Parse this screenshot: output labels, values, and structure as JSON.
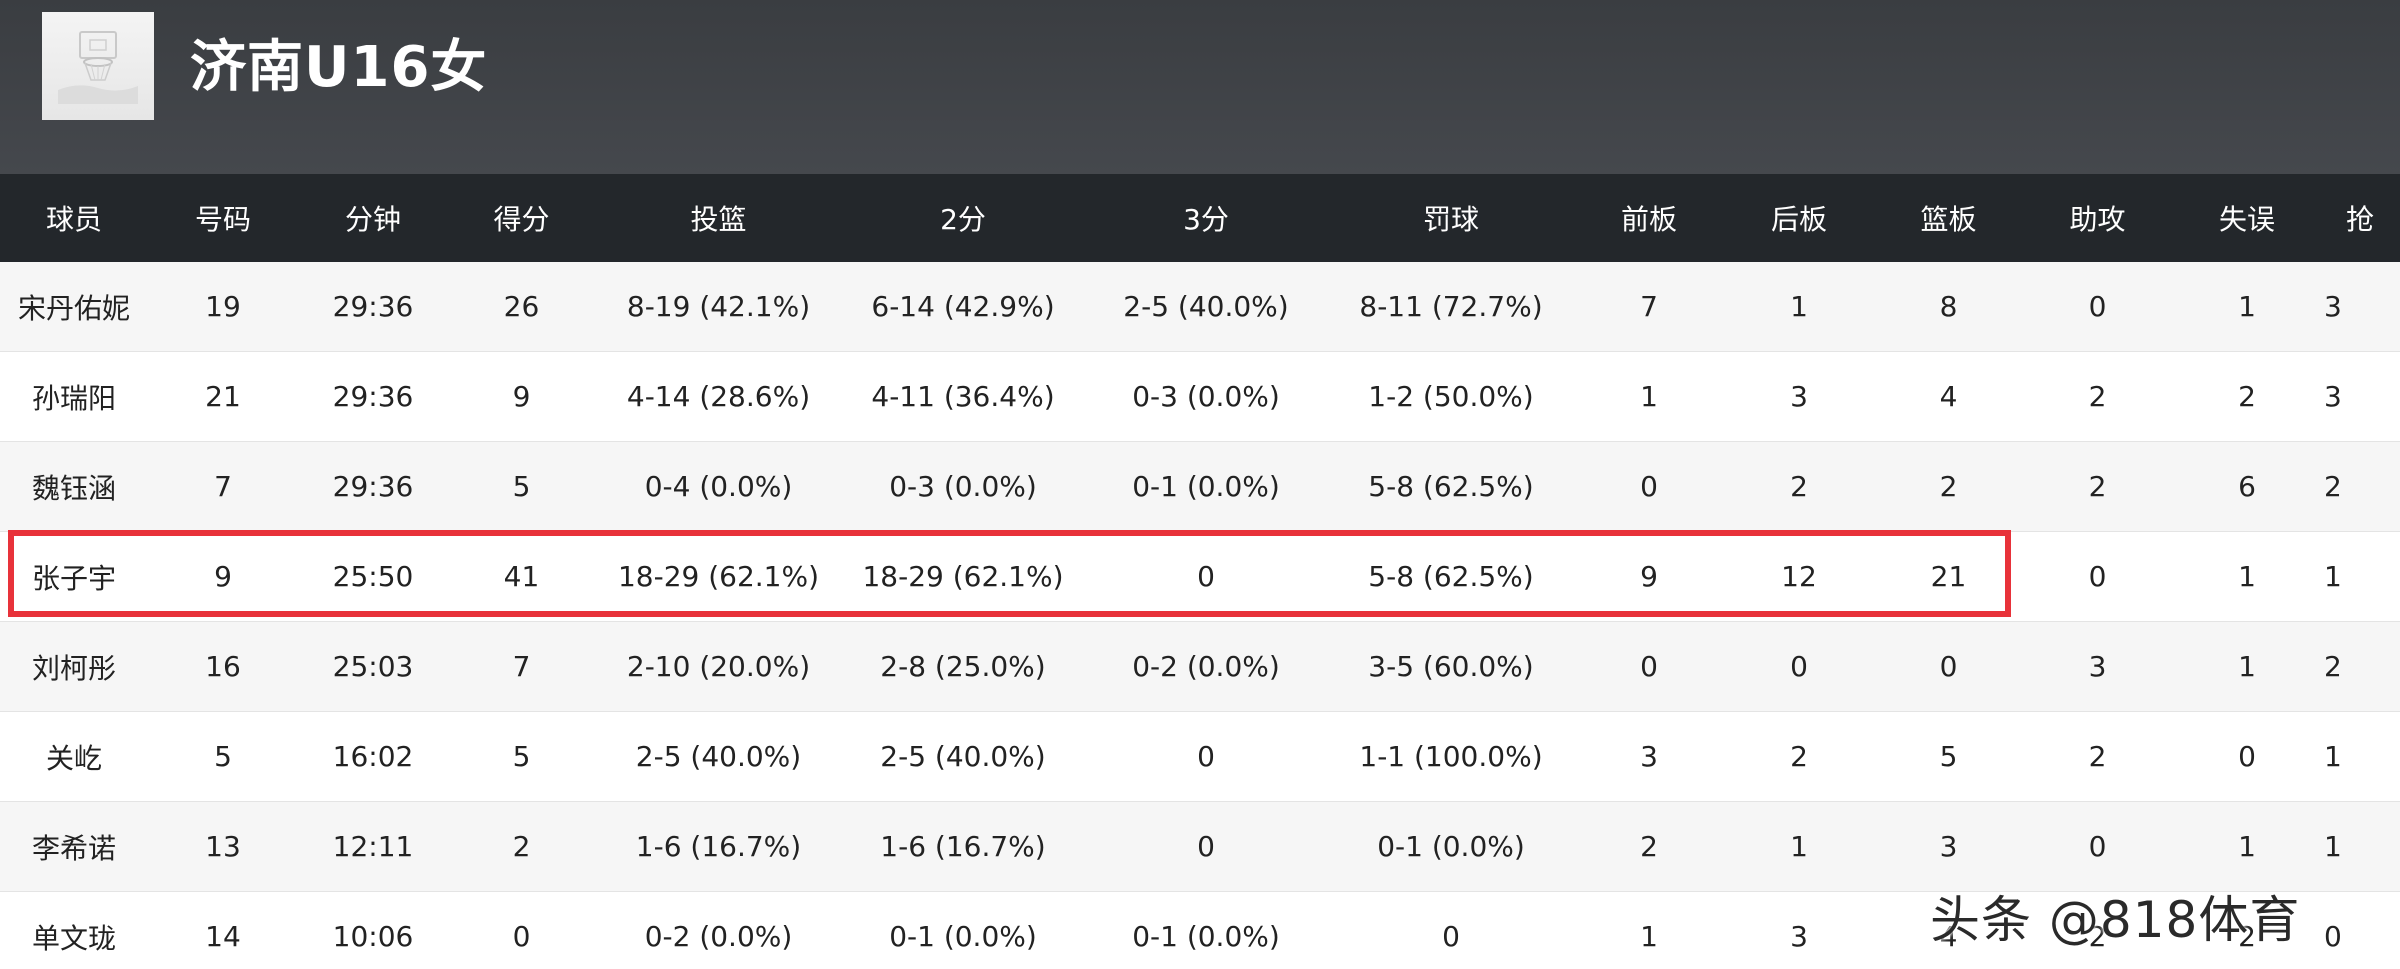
{
  "team": {
    "name": "济南U16女",
    "logo_icon": "basketball-hoop-icon"
  },
  "table": {
    "headers": [
      "球员",
      "号码",
      "分钟",
      "得分",
      "投篮",
      "2分",
      "3分",
      "罚球",
      "前板",
      "后板",
      "篮板",
      "助攻",
      "失误",
      "抢"
    ],
    "rows": [
      [
        "宋丹佑妮",
        "19",
        "29:36",
        "26",
        "8-19 (42.1%)",
        "6-14 (42.9%)",
        "2-5 (40.0%)",
        "8-11 (72.7%)",
        "7",
        "1",
        "8",
        "0",
        "1",
        "3"
      ],
      [
        "孙瑞阳",
        "21",
        "29:36",
        "9",
        "4-14 (28.6%)",
        "4-11 (36.4%)",
        "0-3 (0.0%)",
        "1-2 (50.0%)",
        "1",
        "3",
        "4",
        "2",
        "2",
        "3"
      ],
      [
        "魏钰涵",
        "7",
        "29:36",
        "5",
        "0-4 (0.0%)",
        "0-3 (0.0%)",
        "0-1 (0.0%)",
        "5-8 (62.5%)",
        "0",
        "2",
        "2",
        "2",
        "6",
        "2"
      ],
      [
        "张子宇",
        "9",
        "25:50",
        "41",
        "18-29 (62.1%)",
        "18-29 (62.1%)",
        "0",
        "5-8 (62.5%)",
        "9",
        "12",
        "21",
        "0",
        "1",
        "1"
      ],
      [
        "刘柯彤",
        "16",
        "25:03",
        "7",
        "2-10 (20.0%)",
        "2-8 (25.0%)",
        "0-2 (0.0%)",
        "3-5 (60.0%)",
        "0",
        "0",
        "0",
        "3",
        "1",
        "2"
      ],
      [
        "关屹",
        "5",
        "16:02",
        "5",
        "2-5 (40.0%)",
        "2-5 (40.0%)",
        "0",
        "1-1 (100.0%)",
        "3",
        "2",
        "5",
        "2",
        "0",
        "1"
      ],
      [
        "李希诺",
        "13",
        "12:11",
        "2",
        "1-6 (16.7%)",
        "1-6 (16.7%)",
        "0",
        "0-1 (0.0%)",
        "2",
        "1",
        "3",
        "0",
        "1",
        "1"
      ],
      [
        "单文珑",
        "14",
        "10:06",
        "0",
        "0-2 (0.0%)",
        "0-1 (0.0%)",
        "0-1 (0.0%)",
        "0",
        "1",
        "3",
        "4",
        "2",
        "2",
        "0"
      ]
    ],
    "highlighted_player": "张子宇",
    "highlight_color": "#e8323a"
  },
  "colors": {
    "header_bg": "#3a3d41",
    "table_header_bg": "#23272b",
    "row_alt_bg": "#f6f6f6"
  },
  "watermark": "头条 @818体育"
}
